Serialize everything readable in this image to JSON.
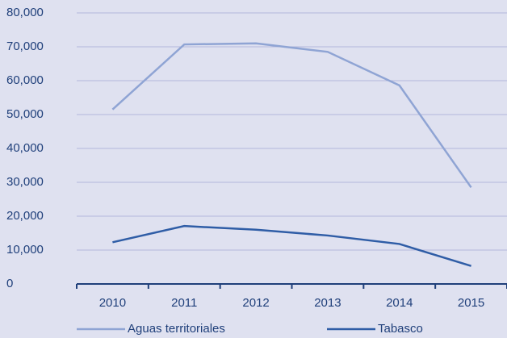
{
  "chart_data": {
    "type": "line",
    "categories": [
      "2010",
      "2011",
      "2012",
      "2013",
      "2014",
      "2015"
    ],
    "series": [
      {
        "name": "Aguas territoriales",
        "color": "#8fa4d4",
        "values": [
          51500,
          70700,
          71000,
          68500,
          58600,
          28500
        ]
      },
      {
        "name": "Tabasco",
        "color": "#2f5da6",
        "values": [
          12300,
          17100,
          16000,
          14300,
          11800,
          5300
        ]
      }
    ],
    "ylim": [
      0,
      80000
    ],
    "yticks": [
      0,
      {
        "value": 10000,
        "label": "10,000"
      },
      {
        "value": 20000,
        "label": "20,000"
      },
      {
        "value": 30000,
        "label": "30,000"
      },
      {
        "value": 40000,
        "label": "40,000"
      },
      {
        "value": 50000,
        "label": "50,000"
      },
      {
        "value": 60000,
        "label": "60,000"
      },
      {
        "value": 70000,
        "label": "70,000"
      },
      {
        "value": 80000,
        "label": "80,000"
      }
    ],
    "grid": true
  }
}
